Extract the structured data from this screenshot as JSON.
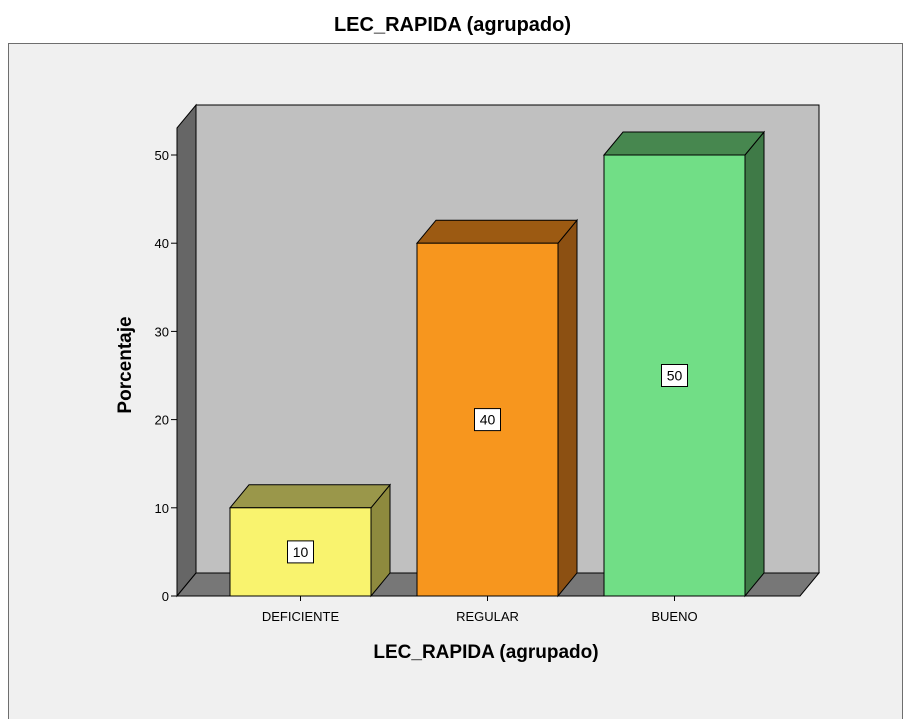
{
  "chart_data": {
    "type": "bar",
    "title": "LEC_RAPIDA (agrupado)",
    "xlabel": "LEC_RAPIDA (agrupado)",
    "ylabel": "Porcentaje",
    "categories": [
      "DEFICIENTE",
      "REGULAR",
      "BUENO"
    ],
    "values": [
      10,
      40,
      50
    ],
    "data_labels": [
      "10",
      "40",
      "50"
    ],
    "ylim": [
      0,
      50
    ],
    "yticks": [
      "0",
      "10",
      "20",
      "30",
      "40",
      "50"
    ],
    "style": "3d",
    "grid": false,
    "legend": "none",
    "colors": {
      "bars": [
        "#f9f36e",
        "#f7961e",
        "#71de86"
      ],
      "bar_tops": [
        "#9a974a",
        "#9c5a12",
        "#47874f"
      ],
      "bar_sides": [
        "#8e8a3e",
        "#8c5012",
        "#3f7a47"
      ],
      "back_wall": "#c0c0c0",
      "side_wall": "#666666",
      "floor": "#777777",
      "plot_background": "#f0f0f0"
    }
  }
}
